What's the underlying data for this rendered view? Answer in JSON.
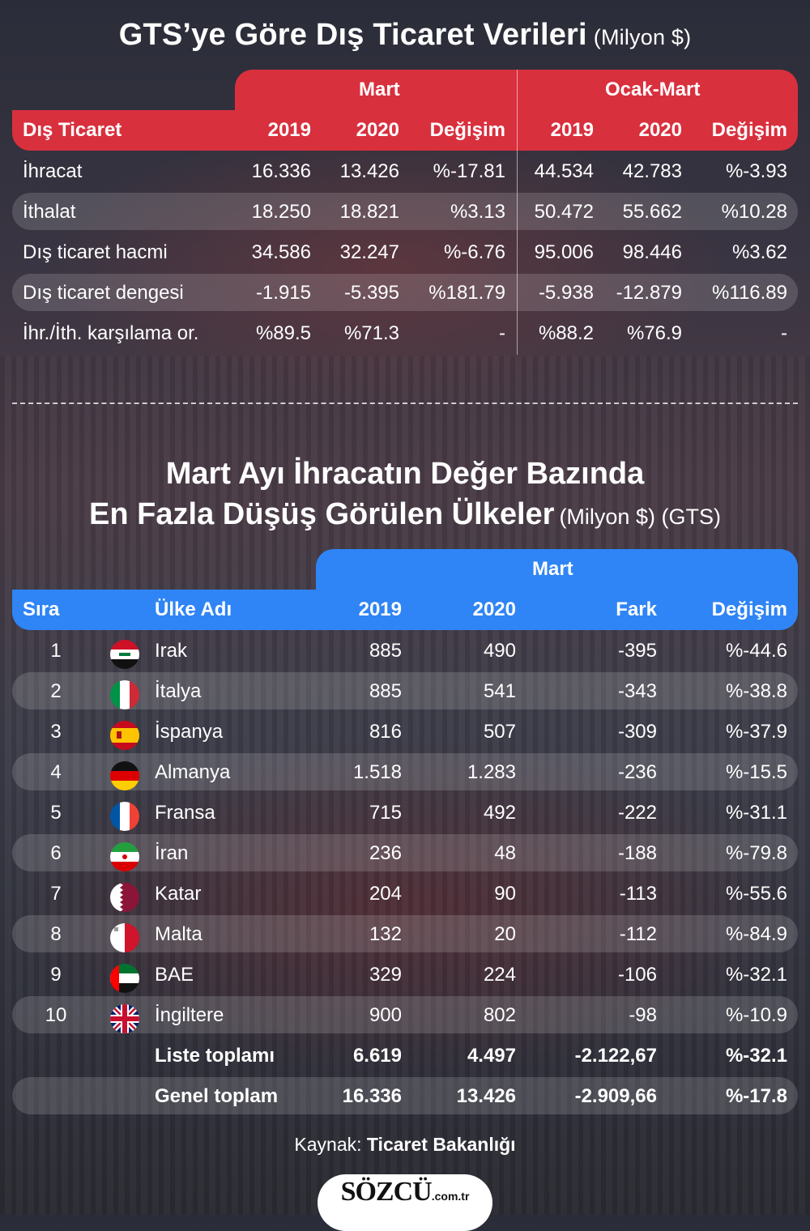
{
  "title1": {
    "main": "GTS’ye Göre Dış Ticaret Verileri",
    "unit": "(Milyon $)"
  },
  "table1": {
    "group_mart": "Mart",
    "group_ocakmart": "Ocak-Mart",
    "headers": [
      "Dış Ticaret",
      "2019",
      "2020",
      "Değişim",
      "2019",
      "2020",
      "Değişim"
    ],
    "rows": [
      [
        "İhracat",
        "16.336",
        "13.426",
        "%-17.81",
        "44.534",
        "42.783",
        "%-3.93"
      ],
      [
        "İthalat",
        "18.250",
        "18.821",
        "%3.13",
        "50.472",
        "55.662",
        "%10.28"
      ],
      [
        "Dış ticaret hacmi",
        "34.586",
        "32.247",
        "%-6.76",
        "95.006",
        "98.446",
        "%3.62"
      ],
      [
        "Dış ticaret dengesi",
        "-1.915",
        "-5.395",
        "%181.79",
        "-5.938",
        "-12.879",
        "%116.89"
      ],
      [
        "İhr./İth. karşılama or.",
        "%89.5",
        "%71.3",
        "-",
        "%88.2",
        "%76.9",
        "-"
      ]
    ]
  },
  "title2": {
    "line1": "Mart Ayı İhracatın Değer Bazında",
    "line2": "En Fazla Düşüş Görülen Ülkeler",
    "unit": "(Milyon $) (GTS)"
  },
  "table2": {
    "group_mart": "Mart",
    "headers": [
      "Sıra",
      "Ülke Adı",
      "2019",
      "2020",
      "Fark",
      "Değişim"
    ],
    "rows": [
      {
        "rank": "1",
        "country": "Irak",
        "flag": "iraq-flag-icon",
        "y2019": "885",
        "y2020": "490",
        "diff": "-395",
        "change": "%-44.6"
      },
      {
        "rank": "2",
        "country": "İtalya",
        "flag": "italy-flag-icon",
        "y2019": "885",
        "y2020": "541",
        "diff": "-343",
        "change": "%-38.8"
      },
      {
        "rank": "3",
        "country": "İspanya",
        "flag": "spain-flag-icon",
        "y2019": "816",
        "y2020": "507",
        "diff": "-309",
        "change": "%-37.9"
      },
      {
        "rank": "4",
        "country": "Almanya",
        "flag": "germany-flag-icon",
        "y2019": "1.518",
        "y2020": "1.283",
        "diff": "-236",
        "change": "%-15.5"
      },
      {
        "rank": "5",
        "country": "Fransa",
        "flag": "france-flag-icon",
        "y2019": "715",
        "y2020": "492",
        "diff": "-222",
        "change": "%-31.1"
      },
      {
        "rank": "6",
        "country": "İran",
        "flag": "iran-flag-icon",
        "y2019": "236",
        "y2020": "48",
        "diff": "-188",
        "change": "%-79.8"
      },
      {
        "rank": "7",
        "country": "Katar",
        "flag": "qatar-flag-icon",
        "y2019": "204",
        "y2020": "90",
        "diff": "-113",
        "change": "%-55.6"
      },
      {
        "rank": "8",
        "country": "Malta",
        "flag": "malta-flag-icon",
        "y2019": "132",
        "y2020": "20",
        "diff": "-112",
        "change": "%-84.9"
      },
      {
        "rank": "9",
        "country": "BAE",
        "flag": "uae-flag-icon",
        "y2019": "329",
        "y2020": "224",
        "diff": "-106",
        "change": "%-32.1"
      },
      {
        "rank": "10",
        "country": "İngiltere",
        "flag": "uk-flag-icon",
        "y2019": "900",
        "y2020": "802",
        "diff": "-98",
        "change": "%-10.9"
      }
    ],
    "totals": [
      {
        "label": "Liste toplamı",
        "y2019": "6.619",
        "y2020": "4.497",
        "diff": "-2.122,67",
        "change": "%-32.1"
      },
      {
        "label": "Genel toplam",
        "y2019": "16.336",
        "y2020": "13.426",
        "diff": "-2.909,66",
        "change": "%-17.8"
      }
    ]
  },
  "source": {
    "prefix": "Kaynak:",
    "name": "Ticaret Bakanlığı"
  },
  "logo": {
    "main": "SÖZCÜ",
    "sub": ".com.tr"
  },
  "colors": {
    "red": "#d9303e",
    "blue": "#2f85f5"
  }
}
